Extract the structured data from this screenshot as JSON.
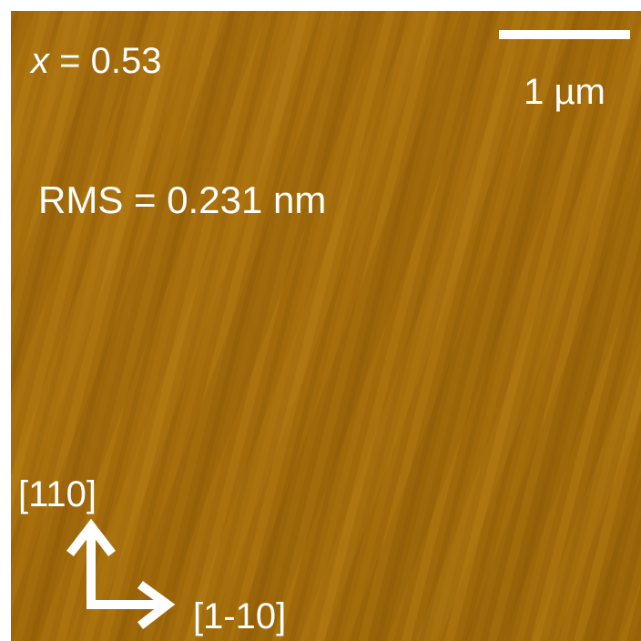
{
  "image": {
    "composition": {
      "variable": "x",
      "text": "= 0.53"
    },
    "scale_bar": {
      "label": "1 µm"
    },
    "roughness": "RMS = 0.231 nm",
    "directions": {
      "vertical": "[110]",
      "horizontal": "[1-10]"
    }
  }
}
